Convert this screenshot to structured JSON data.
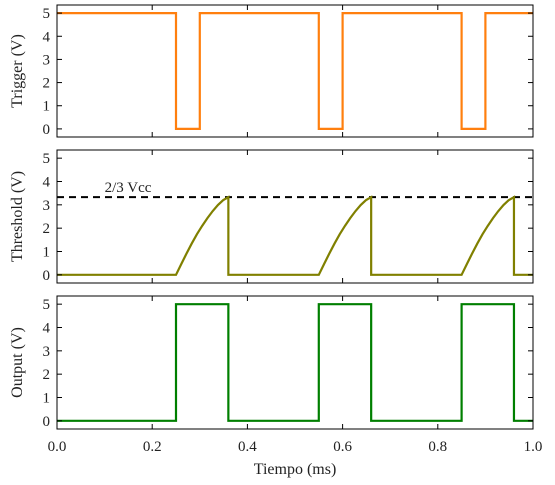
{
  "chart_data": [
    {
      "type": "line",
      "ylabel": "Trigger (V)",
      "xlabel": "",
      "xlim": [
        0.0,
        1.0
      ],
      "ylim": [
        -0.35,
        5.35
      ],
      "yticks": [
        0,
        1,
        2,
        3,
        4,
        5
      ],
      "ytick_labels": [
        "0",
        "1",
        "2",
        "3",
        "4",
        "5"
      ],
      "xticks": [
        0.0,
        0.2,
        0.4,
        0.6,
        0.8,
        1.0
      ],
      "xtick_labels": [],
      "grid": false,
      "series": [
        {
          "color": "#ff7f0e",
          "x": [
            0.0,
            0.25,
            0.25,
            0.3,
            0.3,
            0.55,
            0.55,
            0.6,
            0.6,
            0.85,
            0.85,
            0.9,
            0.9,
            1.0
          ],
          "y": [
            5,
            5,
            0,
            0,
            5,
            5,
            0,
            0,
            5,
            5,
            0,
            0,
            5,
            5
          ]
        }
      ]
    },
    {
      "type": "line",
      "ylabel": "Threshold (V)",
      "xlabel": "",
      "xlim": [
        0.0,
        1.0
      ],
      "ylim": [
        -0.35,
        5.35
      ],
      "yticks": [
        0,
        1,
        2,
        3,
        4,
        5
      ],
      "ytick_labels": [
        "0",
        "1",
        "2",
        "3",
        "4",
        "5"
      ],
      "xticks": [
        0.0,
        0.2,
        0.4,
        0.6,
        0.8,
        1.0
      ],
      "xtick_labels": [],
      "grid": false,
      "series": [
        {
          "color": "#808000",
          "x": [
            0.0,
            0.25,
            0.261,
            0.272,
            0.283,
            0.294,
            0.305,
            0.316,
            0.327,
            0.338,
            0.349,
            0.36,
            0.36,
            0.55,
            0.561,
            0.572,
            0.583,
            0.594,
            0.605,
            0.616,
            0.627,
            0.638,
            0.649,
            0.66,
            0.66,
            0.85,
            0.861,
            0.872,
            0.883,
            0.894,
            0.905,
            0.916,
            0.927,
            0.938,
            0.949,
            0.96,
            0.96,
            1.0
          ],
          "y": [
            0,
            0,
            0.46,
            0.91,
            1.34,
            1.74,
            2.1,
            2.43,
            2.73,
            2.99,
            3.2,
            3.33,
            0,
            0,
            0.46,
            0.91,
            1.34,
            1.74,
            2.1,
            2.43,
            2.73,
            2.99,
            3.2,
            3.33,
            0,
            0,
            0.46,
            0.91,
            1.34,
            1.74,
            2.1,
            2.43,
            2.73,
            2.99,
            3.2,
            3.33,
            0,
            0
          ]
        }
      ],
      "reference_line": {
        "y": 3.33,
        "color": "#000000",
        "style": "dashed",
        "label": "2/3 Vcc",
        "label_x": 0.1,
        "label_y": 3.55
      }
    },
    {
      "type": "line",
      "ylabel": "Output (V)",
      "xlabel": "Tiempo (ms)",
      "xlim": [
        0.0,
        1.0
      ],
      "ylim": [
        -0.35,
        5.35
      ],
      "yticks": [
        0,
        1,
        2,
        3,
        4,
        5
      ],
      "ytick_labels": [
        "0",
        "1",
        "2",
        "3",
        "4",
        "5"
      ],
      "xticks": [
        0.0,
        0.2,
        0.4,
        0.6,
        0.8,
        1.0
      ],
      "xtick_labels": [
        "0.0",
        "0.2",
        "0.4",
        "0.6",
        "0.8",
        "1.0"
      ],
      "grid": false,
      "series": [
        {
          "color": "#007f00",
          "x": [
            0.0,
            0.25,
            0.25,
            0.36,
            0.36,
            0.55,
            0.55,
            0.66,
            0.66,
            0.85,
            0.85,
            0.96,
            0.96,
            1.0
          ],
          "y": [
            0,
            0,
            5,
            5,
            0,
            0,
            5,
            5,
            0,
            0,
            5,
            5,
            0,
            0
          ]
        }
      ]
    }
  ]
}
